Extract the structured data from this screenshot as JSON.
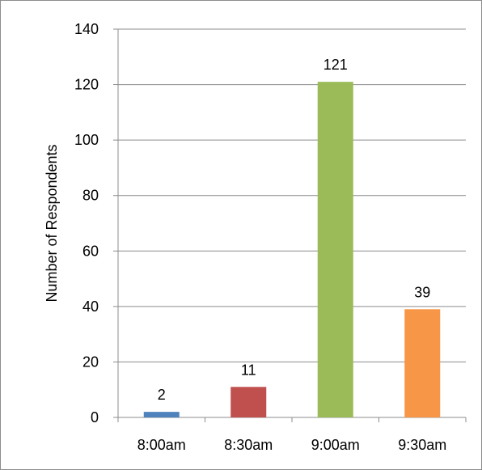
{
  "chart_data": {
    "type": "bar",
    "categories": [
      "8:00am",
      "8:30am",
      "9:00am",
      "9:30am"
    ],
    "values": [
      2,
      11,
      121,
      39
    ],
    "data_labels": [
      "2",
      "11",
      "121",
      "39"
    ],
    "colors": [
      "#4f81bd",
      "#c0504d",
      "#9bbb59",
      "#f79646"
    ],
    "title": "",
    "xlabel": "",
    "ylabel": "Number of Respondents",
    "ylim": [
      0,
      140
    ],
    "yticks": [
      "0",
      "20",
      "40",
      "60",
      "80",
      "100",
      "120",
      "140"
    ],
    "grid": true,
    "legend": "none"
  }
}
